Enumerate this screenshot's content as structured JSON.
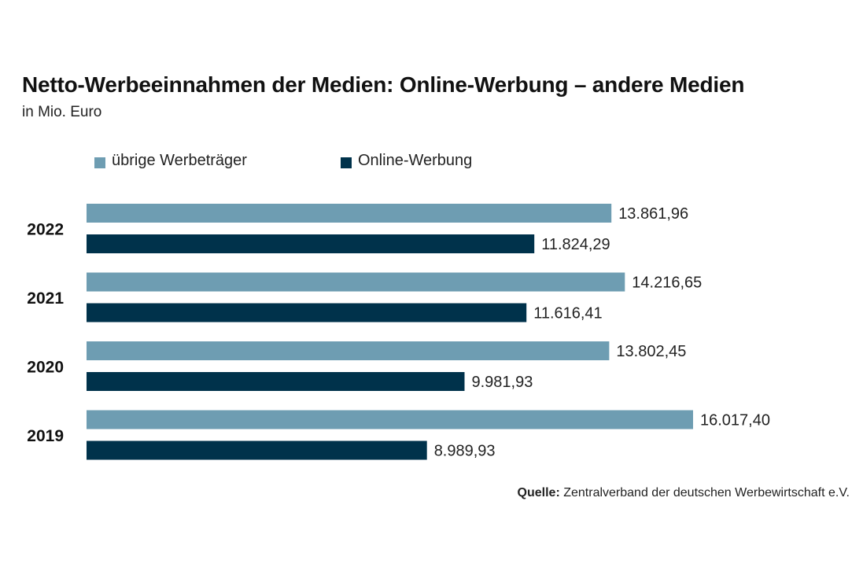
{
  "chart_data": {
    "type": "bar",
    "orientation": "horizontal",
    "title": "Netto-Werbeeinnahmen der Medien: Online-Werbung – andere Medien",
    "subtitle": "in Mio. Euro",
    "categories": [
      "2022",
      "2021",
      "2020",
      "2019"
    ],
    "series": [
      {
        "name": "übrige Werbeträger",
        "color": "#6e9db2",
        "values": [
          13861.96,
          14216.65,
          13802.45,
          16017.4
        ],
        "labels": [
          "13.861,96",
          "14.216,65",
          "13.802,45",
          "16.017,40"
        ]
      },
      {
        "name": "Online-Werbung",
        "color": "#00324b",
        "values": [
          11824.29,
          11616.41,
          9981.93,
          8989.93
        ],
        "labels": [
          "11.824,29",
          "11.616,41",
          "9.981,93",
          "8.989,93"
        ]
      }
    ],
    "xlim": [
      0,
      16017.4
    ],
    "grid": false,
    "legend_position": "top-left"
  },
  "source": {
    "label": "Quelle:",
    "text": "Zentralverband der deutschen Werbewirtschaft e.V."
  }
}
